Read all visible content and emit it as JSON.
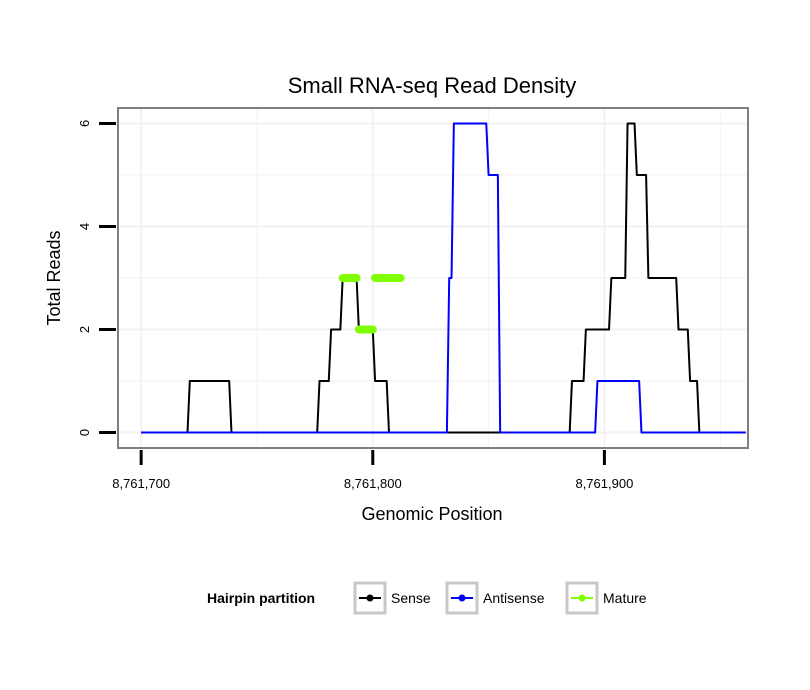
{
  "chart_data": {
    "type": "line",
    "title": "Small RNA-seq Read Density",
    "xlabel": "Genomic Position",
    "ylabel": "Total Reads",
    "xlim": [
      8761690,
      8761962
    ],
    "ylim": [
      -0.3,
      6.3
    ],
    "x_ticks": [
      8761700,
      8761800,
      8761900
    ],
    "x_tick_labels": [
      "8,761,700",
      "8,761,800",
      "8,761,900"
    ],
    "y_ticks": [
      0,
      2,
      4,
      6
    ],
    "y_tick_labels": [
      "0",
      "2",
      "4",
      "6"
    ],
    "grid": true,
    "legend": {
      "title": "Hairpin partition",
      "position": "bottom",
      "entries": [
        "Sense",
        "Antisense",
        "Mature"
      ]
    },
    "colors": {
      "Sense": "#000000",
      "Antisense": "#0000ff",
      "Mature": "#7fff00",
      "panel_border": "#7f7f7f",
      "grid": "#f2f2f2"
    },
    "series": [
      {
        "name": "Sense",
        "x": [
          8761700,
          8761720,
          8761721,
          8761738,
          8761739,
          8761776,
          8761777,
          8761781,
          8761782,
          8761786,
          8761787,
          8761793,
          8761794,
          8761800,
          8761801,
          8761806,
          8761807,
          8761812,
          8761813,
          8761815,
          8761816,
          8761885,
          8761886,
          8761891,
          8761892,
          8761902,
          8761903,
          8761909,
          8761910,
          8761913,
          8761914,
          8761918,
          8761919,
          8761931,
          8761932,
          8761936,
          8761937,
          8761940,
          8761941,
          8761961
        ],
        "y": [
          0,
          0,
          1,
          1,
          0,
          0,
          1,
          1,
          2,
          2,
          3,
          3,
          2,
          2,
          1,
          1,
          0,
          0,
          0,
          0,
          0,
          0,
          1,
          1,
          2,
          2,
          3,
          3,
          6,
          6,
          5,
          5,
          3,
          3,
          2,
          2,
          1,
          1,
          0,
          0
        ]
      },
      {
        "name": "Antisense",
        "x": [
          8761700,
          8761832,
          8761833,
          8761834,
          8761835,
          8761849,
          8761850,
          8761854,
          8761855,
          8761896,
          8761897,
          8761915,
          8761916,
          8761961
        ],
        "y": [
          0,
          0,
          3,
          3,
          6,
          6,
          5,
          5,
          0,
          0,
          1,
          1,
          0,
          0
        ]
      },
      {
        "name": "Mature",
        "x": [
          8761786,
          8761787,
          8761793,
          8761794,
          8761800,
          8761801,
          8761812
        ],
        "y": [
          2,
          3,
          3,
          2,
          2,
          3,
          3
        ]
      }
    ]
  }
}
